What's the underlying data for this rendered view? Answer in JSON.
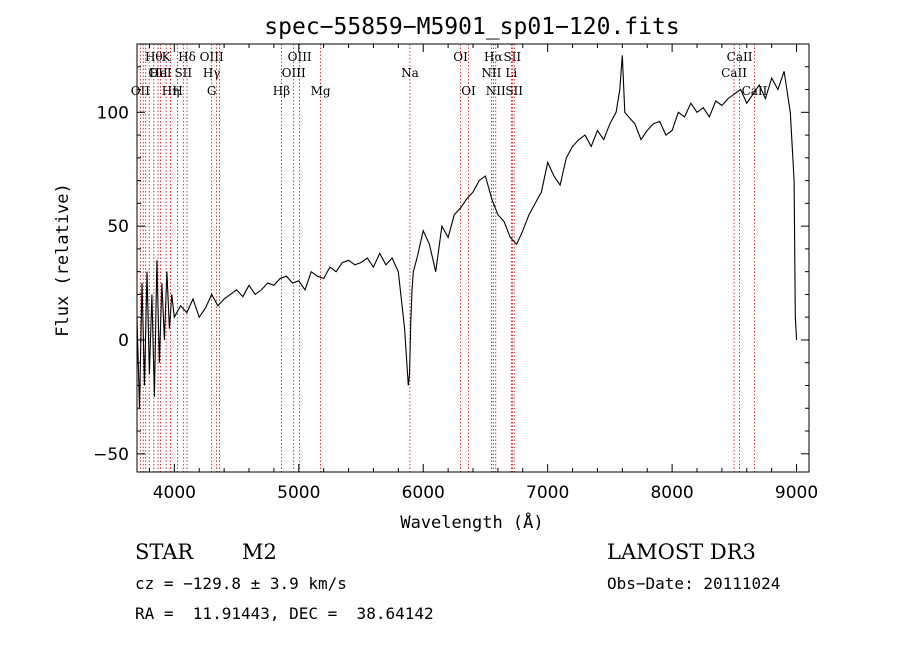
{
  "chart_data": {
    "type": "line",
    "title": "spec−55859−M5901_sp01−120.fits",
    "xlabel": "Wavelength (Å)",
    "ylabel": "Flux (relative)",
    "xlim": [
      3700,
      9100
    ],
    "ylim": [
      -58,
      130
    ],
    "xticks": [
      4000,
      5000,
      6000,
      7000,
      8000,
      9000
    ],
    "yticks": [
      -50,
      0,
      50,
      100
    ],
    "series": [
      {
        "name": "spectrum",
        "x": [
          3700,
          3720,
          3740,
          3760,
          3780,
          3800,
          3820,
          3840,
          3860,
          3880,
          3900,
          3920,
          3940,
          3960,
          3980,
          4000,
          4050,
          4100,
          4150,
          4200,
          4250,
          4300,
          4350,
          4400,
          4450,
          4500,
          4550,
          4600,
          4650,
          4700,
          4750,
          4800,
          4850,
          4900,
          4950,
          5000,
          5050,
          5100,
          5150,
          5200,
          5250,
          5300,
          5350,
          5400,
          5450,
          5500,
          5550,
          5600,
          5650,
          5700,
          5750,
          5800,
          5850,
          5880,
          5890,
          5900,
          5910,
          5920,
          5950,
          6000,
          6050,
          6100,
          6150,
          6200,
          6250,
          6300,
          6350,
          6400,
          6450,
          6500,
          6550,
          6600,
          6650,
          6700,
          6750,
          6800,
          6850,
          6900,
          6950,
          7000,
          7050,
          7100,
          7150,
          7200,
          7250,
          7300,
          7350,
          7400,
          7450,
          7500,
          7550,
          7580,
          7600,
          7620,
          7650,
          7700,
          7750,
          7800,
          7850,
          7900,
          7950,
          8000,
          8050,
          8100,
          8150,
          8200,
          8250,
          8300,
          8350,
          8400,
          8450,
          8500,
          8550,
          8600,
          8650,
          8700,
          8750,
          8800,
          8850,
          8900,
          8950,
          8980,
          8990,
          9000
        ],
        "y": [
          10,
          -30,
          25,
          -20,
          30,
          -15,
          20,
          -25,
          35,
          -10,
          25,
          0,
          30,
          5,
          20,
          10,
          15,
          12,
          18,
          10,
          14,
          20,
          15,
          18,
          20,
          22,
          19,
          24,
          20,
          22,
          25,
          24,
          27,
          28,
          25,
          26,
          22,
          30,
          28,
          27,
          32,
          30,
          34,
          35,
          33,
          34,
          36,
          32,
          38,
          33,
          36,
          30,
          5,
          -20,
          -15,
          8,
          22,
          30,
          36,
          48,
          42,
          30,
          50,
          45,
          55,
          58,
          62,
          65,
          70,
          72,
          62,
          55,
          52,
          45,
          42,
          48,
          55,
          60,
          65,
          78,
          72,
          68,
          80,
          85,
          88,
          90,
          85,
          92,
          88,
          95,
          100,
          110,
          125,
          100,
          98,
          95,
          88,
          92,
          95,
          96,
          90,
          92,
          100,
          98,
          104,
          100,
          102,
          98,
          105,
          103,
          106,
          108,
          110,
          104,
          108,
          112,
          106,
          115,
          110,
          118,
          100,
          70,
          10,
          0
        ]
      }
    ],
    "lines": [
      {
        "wl": 3727,
        "labels": [
          "OII"
        ],
        "row": 3
      },
      {
        "wl": 3750,
        "labels": [],
        "row": 0
      },
      {
        "wl": 3770,
        "labels": [],
        "row": 0
      },
      {
        "wl": 3798,
        "labels": [],
        "row": 0
      },
      {
        "wl": 3835,
        "labels": [
          "Hθ"
        ],
        "row": 1
      },
      {
        "wl": 3869,
        "labels": [
          "OII"
        ],
        "row": 2
      },
      {
        "wl": 3889,
        "labels": [
          "HeI"
        ],
        "row": 2
      },
      {
        "wl": 3934,
        "labels": [
          "K"
        ],
        "row": 1
      },
      {
        "wl": 3970,
        "labels": [
          "Hη"
        ],
        "row": 3
      },
      {
        "wl": 4026,
        "labels": [
          "H"
        ],
        "row": 3
      },
      {
        "wl": 4072,
        "labels": [
          "SII"
        ],
        "row": 2
      },
      {
        "wl": 4102,
        "labels": [
          "Hδ"
        ],
        "row": 1
      },
      {
        "wl": 4300,
        "labels": [
          "OIII",
          "Hγ",
          "G"
        ],
        "row": 1
      },
      {
        "wl": 4340,
        "labels": [],
        "row": 0
      },
      {
        "wl": 4363,
        "labels": [],
        "row": 0
      },
      {
        "wl": 4861,
        "labels": [
          "Hβ"
        ],
        "row": 3
      },
      {
        "wl": 4959,
        "labels": [
          "OIII"
        ],
        "row": 2
      },
      {
        "wl": 5007,
        "labels": [
          "OIII"
        ],
        "row": 1
      },
      {
        "wl": 5175,
        "labels": [
          "Mg"
        ],
        "row": 3
      },
      {
        "wl": 5893,
        "labels": [
          "Na"
        ],
        "row": 2
      },
      {
        "wl": 6300,
        "labels": [
          "OI"
        ],
        "row": 1
      },
      {
        "wl": 6364,
        "labels": [
          "OI"
        ],
        "row": 3
      },
      {
        "wl": 6548,
        "labels": [
          "NII"
        ],
        "row": 2
      },
      {
        "wl": 6563,
        "labels": [
          "Hα"
        ],
        "row": 1
      },
      {
        "wl": 6583,
        "labels": [
          "NII"
        ],
        "row": 3
      },
      {
        "wl": 6708,
        "labels": [
          "Li"
        ],
        "row": 2
      },
      {
        "wl": 6716,
        "labels": [
          "SII"
        ],
        "row": 1
      },
      {
        "wl": 6731,
        "labels": [
          "SII"
        ],
        "row": 3
      },
      {
        "wl": 8498,
        "labels": [
          "CaII"
        ],
        "row": 2
      },
      {
        "wl": 8542,
        "labels": [
          "CaII"
        ],
        "row": 1
      },
      {
        "wl": 8662,
        "labels": [
          "CaII"
        ],
        "row": 3
      }
    ]
  },
  "info": {
    "class": "STAR",
    "subclass": "M2",
    "survey": "LAMOST DR3",
    "cz": "cz = −129.8 ± 3.9 km/s",
    "obs_date": "Obs−Date: 20111024",
    "radec": "RA =  11.91443, DEC =  38.64142"
  }
}
